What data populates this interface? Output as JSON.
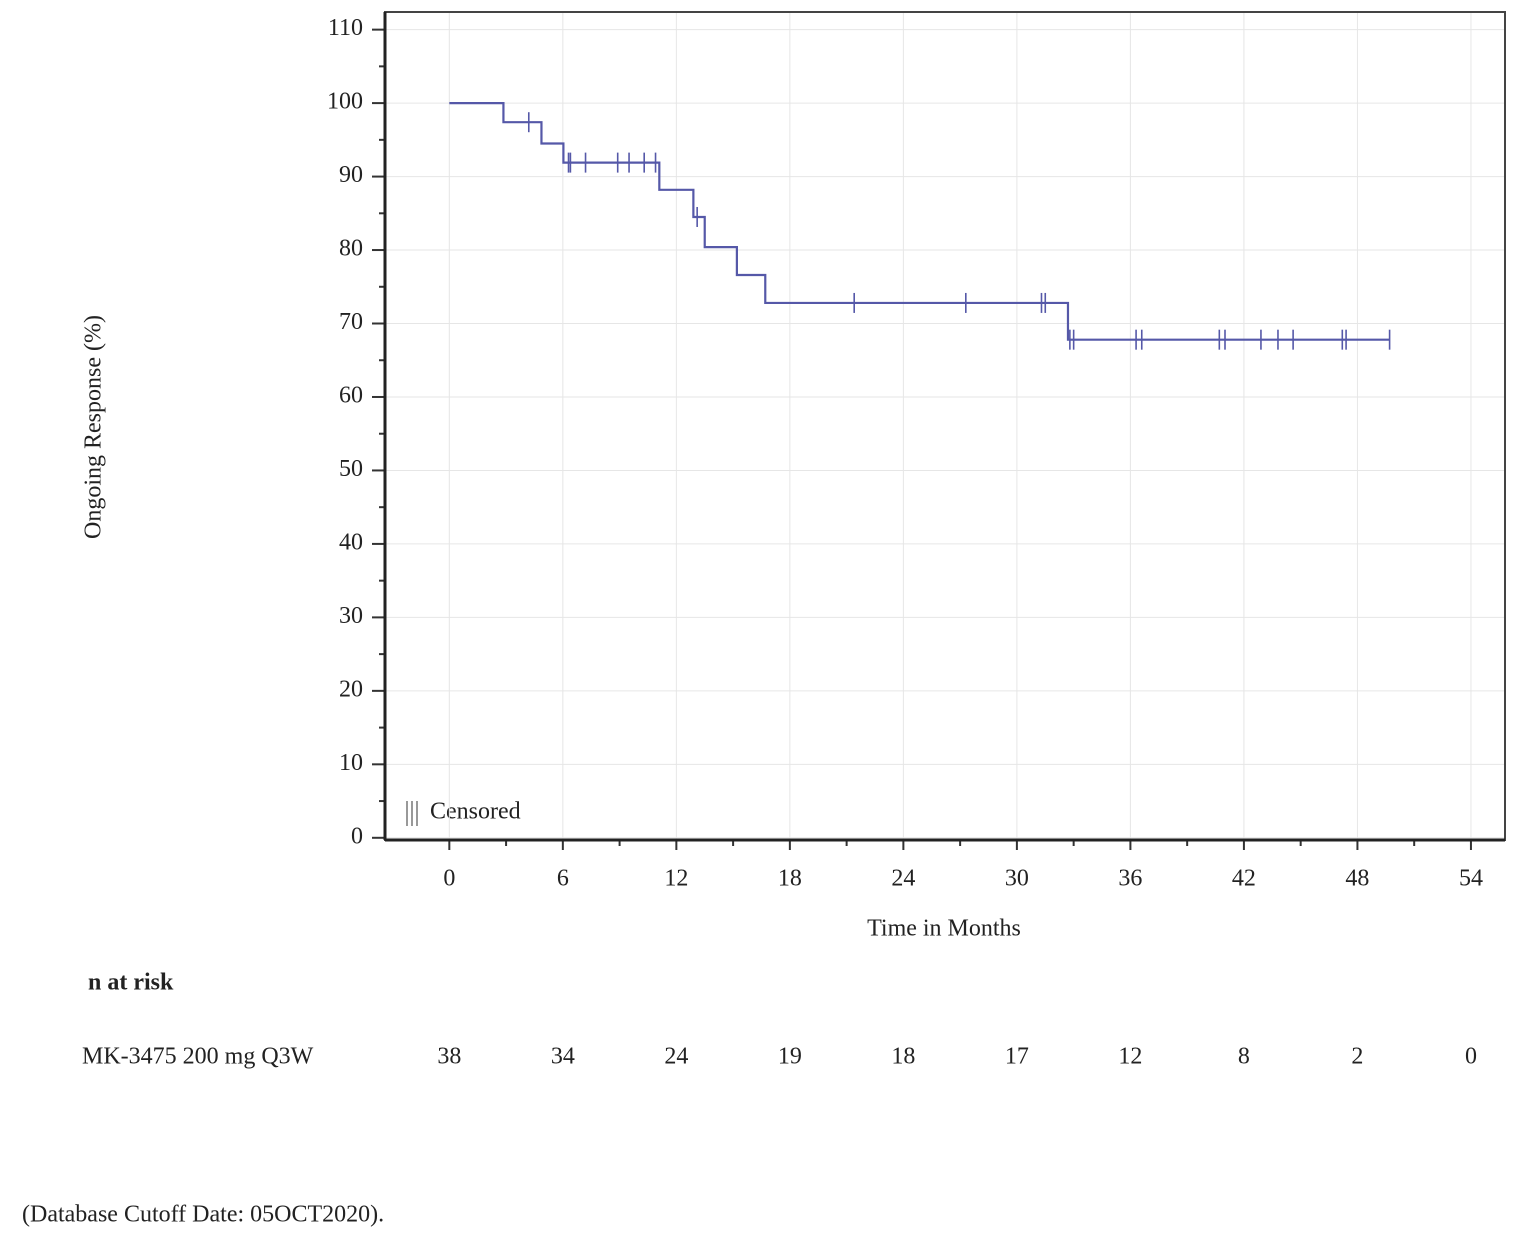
{
  "chart_data": {
    "type": "km",
    "x_label": "Time in Months",
    "y_label": "Ongoing Response (%)",
    "xlim": [
      -3.4,
      55.8
    ],
    "ylim": [
      -0.3,
      112.4
    ],
    "xticks": [
      0,
      6,
      12,
      18,
      24,
      30,
      36,
      42,
      48,
      54
    ],
    "yticks": [
      0,
      10,
      20,
      30,
      40,
      50,
      60,
      70,
      80,
      90,
      100,
      110
    ],
    "grid": true,
    "series": [
      {
        "name": "MK-3475 200 mg Q3W",
        "color": "#5558a8",
        "x": [
          0,
          2.86,
          4.87,
          6.03,
          11.1,
          12.9,
          13.5,
          15.2,
          16.7,
          32.7,
          49.7
        ],
        "values": [
          100,
          97.4,
          94.5,
          91.9,
          88.2,
          84.5,
          80.4,
          76.6,
          72.8,
          67.8,
          67.8
        ]
      }
    ],
    "censored": {
      "label": "Censored",
      "x": [
        4.2,
        6.3,
        6.4,
        7.2,
        8.9,
        9.5,
        10.3,
        10.9,
        13.1,
        21.4,
        27.3,
        31.3,
        31.5,
        32.8,
        33.0,
        36.3,
        36.6,
        40.7,
        41.0,
        42.9,
        43.8,
        44.6,
        47.2,
        47.4,
        49.7
      ],
      "values": [
        97.4,
        91.9,
        91.9,
        91.9,
        91.9,
        91.9,
        91.9,
        91.9,
        84.5,
        72.8,
        72.8,
        72.8,
        72.8,
        67.8,
        67.8,
        67.8,
        67.8,
        67.8,
        67.8,
        67.8,
        67.8,
        67.8,
        67.8,
        67.8,
        67.8
      ]
    },
    "risk_table": {
      "title": "n at risk",
      "row_label": "MK-3475 200 mg Q3W",
      "values": [
        38,
        34,
        24,
        19,
        18,
        17,
        12,
        8,
        2,
        0
      ]
    },
    "footnote": "(Database Cutoff Date: 05OCT2020)."
  }
}
